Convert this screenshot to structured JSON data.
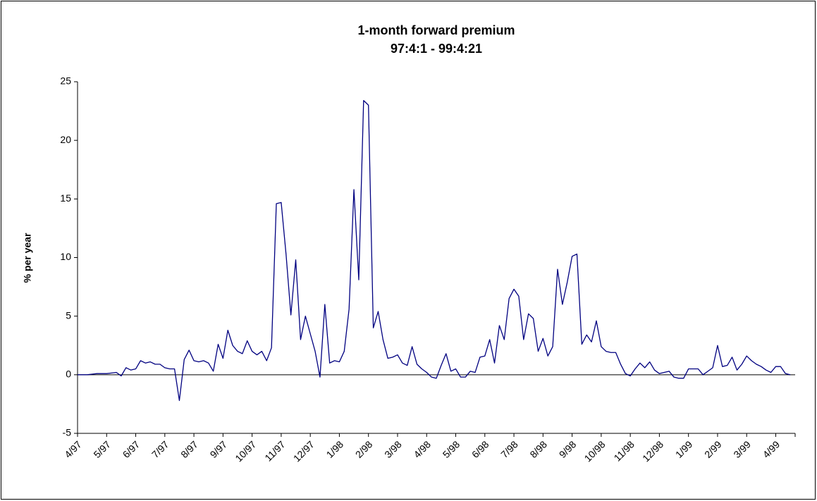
{
  "chart_data": {
    "type": "line",
    "title": "1-month forward premium",
    "subtitle": "97:4:1 - 99:4:21",
    "ylabel": "% per year",
    "categories": [
      "4/97",
      null,
      null,
      null,
      null,
      null,
      "5/97",
      null,
      null,
      null,
      null,
      null,
      "6/97",
      null,
      null,
      null,
      null,
      null,
      "7/97",
      null,
      null,
      null,
      null,
      null,
      "8/97",
      null,
      null,
      null,
      null,
      null,
      "9/97",
      null,
      null,
      null,
      null,
      null,
      "10/97",
      null,
      null,
      null,
      null,
      null,
      "11/97",
      null,
      null,
      null,
      null,
      null,
      "12/97",
      null,
      null,
      null,
      null,
      null,
      "1/98",
      null,
      null,
      null,
      null,
      null,
      "2/98",
      null,
      null,
      null,
      null,
      null,
      "3/98",
      null,
      null,
      null,
      null,
      null,
      "4/98",
      null,
      null,
      null,
      null,
      null,
      "5/98",
      null,
      null,
      null,
      null,
      null,
      "6/98",
      null,
      null,
      null,
      null,
      null,
      "7/98",
      null,
      null,
      null,
      null,
      null,
      "8/98",
      null,
      null,
      null,
      null,
      null,
      "9/98",
      null,
      null,
      null,
      null,
      null,
      "10/98",
      null,
      null,
      null,
      null,
      null,
      "11/98",
      null,
      null,
      null,
      null,
      null,
      "12/98",
      null,
      null,
      null,
      null,
      null,
      "1/99",
      null,
      null,
      null,
      null,
      null,
      "2/99",
      null,
      null,
      null,
      null,
      null,
      "3/99",
      null,
      null,
      null,
      null,
      null,
      "4/99",
      null,
      null,
      null
    ],
    "series": [
      {
        "color": "#000080",
        "values": [
          0.0,
          0.0,
          0.0,
          0.05,
          0.1,
          0.1,
          0.1,
          0.15,
          0.2,
          -0.1,
          0.6,
          0.4,
          0.5,
          1.2,
          1.0,
          1.1,
          0.9,
          0.9,
          0.6,
          0.5,
          0.5,
          -2.2,
          1.3,
          2.1,
          1.2,
          1.1,
          1.2,
          1.0,
          0.3,
          2.6,
          1.4,
          3.8,
          2.5,
          2.0,
          1.8,
          2.9,
          2.0,
          1.7,
          2.0,
          1.2,
          2.3,
          14.6,
          14.7,
          10.3,
          5.1,
          9.8,
          3.0,
          5.0,
          3.5,
          2.0,
          -0.2,
          6.0,
          1.0,
          1.2,
          1.1,
          2.0,
          5.6,
          15.8,
          8.1,
          23.4,
          23.0,
          4.0,
          5.4,
          3.0,
          1.4,
          1.5,
          1.7,
          1.0,
          0.8,
          2.4,
          0.9,
          0.5,
          0.2,
          -0.2,
          -0.3,
          0.8,
          1.8,
          0.3,
          0.5,
          -0.2,
          -0.2,
          0.3,
          0.2,
          1.5,
          1.6,
          3.0,
          1.0,
          4.2,
          3.0,
          6.5,
          7.3,
          6.7,
          3.0,
          5.2,
          4.8,
          2.0,
          3.1,
          1.6,
          2.4,
          9.0,
          6.0,
          7.9,
          10.1,
          10.3,
          2.6,
          3.4,
          2.8,
          4.6,
          2.4,
          2.0,
          1.9,
          1.9,
          0.9,
          0.1,
          -0.1,
          0.5,
          1.0,
          0.6,
          1.1,
          0.4,
          0.1,
          0.2,
          0.3,
          -0.2,
          -0.3,
          -0.3,
          0.5,
          0.5,
          0.5,
          0.0,
          0.3,
          0.6,
          2.5,
          0.7,
          0.8,
          1.5,
          0.4,
          0.9,
          1.6,
          1.2,
          0.9,
          0.7,
          0.4,
          0.2,
          0.7,
          0.7,
          0.1,
          0.0
        ]
      }
    ],
    "ylim": [
      -5,
      25
    ],
    "yticks": [
      -5,
      0,
      5,
      10,
      15,
      20,
      25
    ]
  }
}
